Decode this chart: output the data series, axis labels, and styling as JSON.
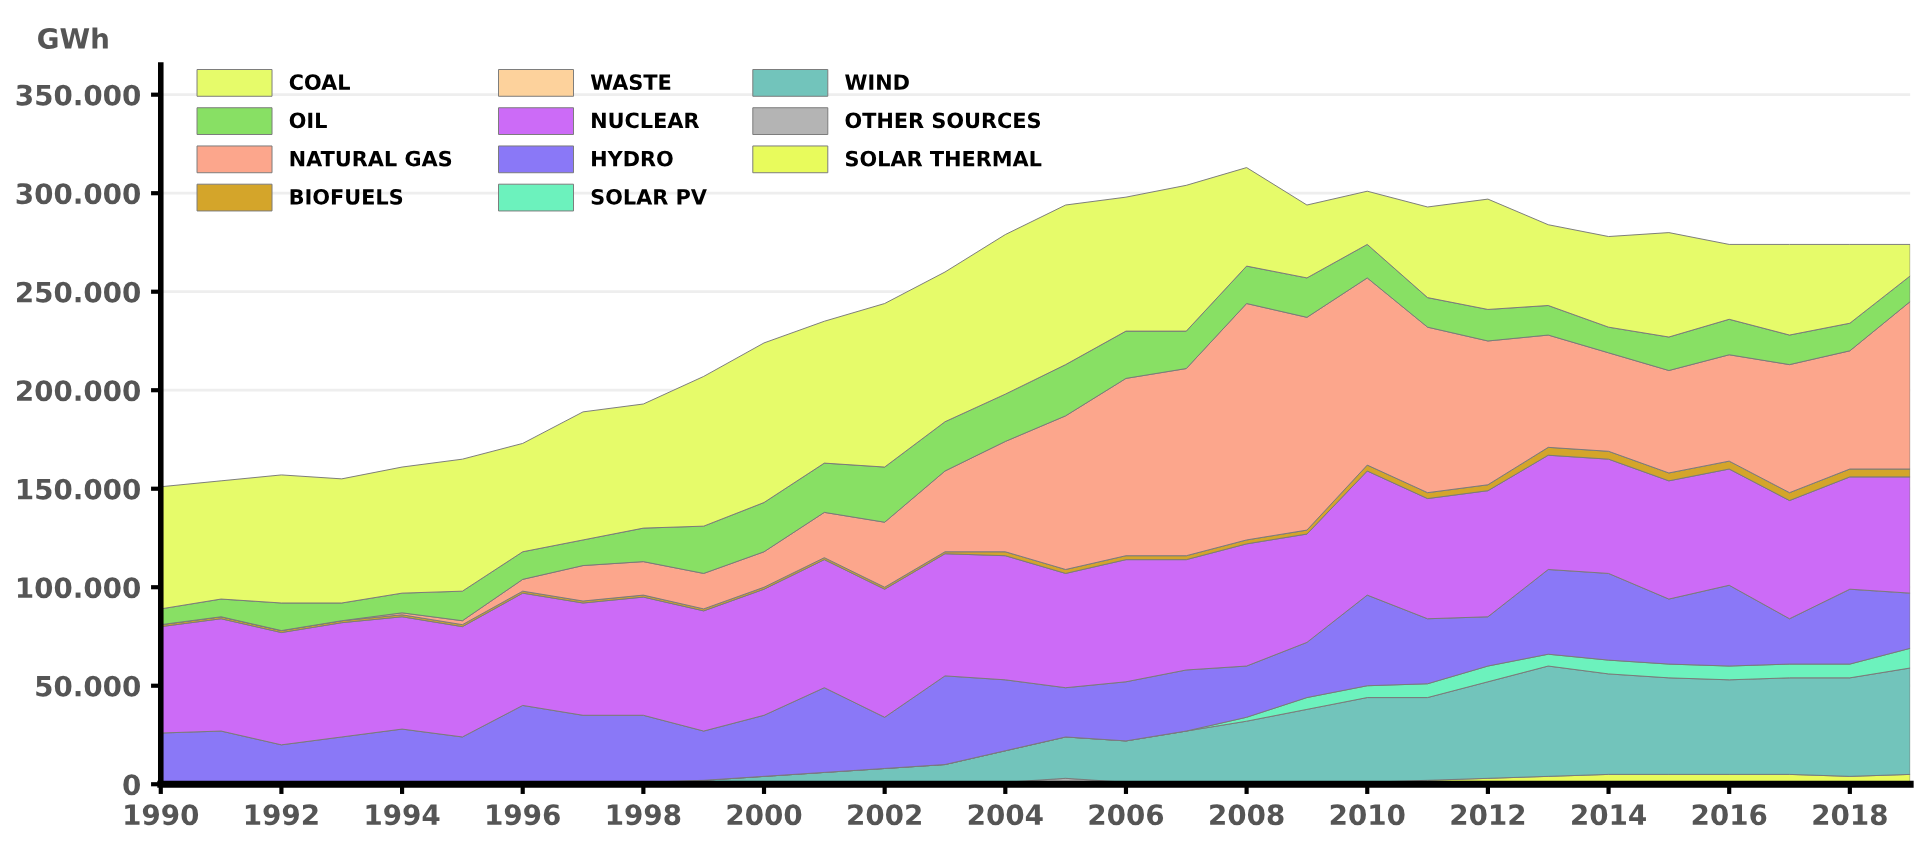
{
  "chart_data": {
    "type": "area",
    "stacked": true,
    "ylabel": "GWh",
    "x": [
      1990,
      1991,
      1992,
      1993,
      1994,
      1995,
      1996,
      1997,
      1998,
      1999,
      2000,
      2001,
      2002,
      2003,
      2004,
      2005,
      2006,
      2007,
      2008,
      2009,
      2010,
      2011,
      2012,
      2013,
      2014,
      2015,
      2016,
      2017,
      2018,
      2019
    ],
    "xlim": [
      1990,
      2019
    ],
    "xticks": [
      1990,
      1992,
      1994,
      1996,
      1998,
      2000,
      2002,
      2004,
      2006,
      2008,
      2010,
      2012,
      2014,
      2016,
      2018
    ],
    "ylim": [
      0,
      365000
    ],
    "yticks": [
      {
        "value": 0,
        "label": "0"
      },
      {
        "value": 50000,
        "label": "50.000"
      },
      {
        "value": 100000,
        "label": "100.000"
      },
      {
        "value": 150000,
        "label": "150.000"
      },
      {
        "value": 200000,
        "label": "200.000"
      },
      {
        "value": 250000,
        "label": "250.000"
      },
      {
        "value": 300000,
        "label": "300.000"
      },
      {
        "value": 350000,
        "label": "350.000"
      }
    ],
    "grid": "y",
    "legend": "top left",
    "series": [
      {
        "name": "SOLAR THERMAL",
        "color": "#e8fb5c",
        "values": [
          0,
          0,
          0,
          0,
          0,
          0,
          0,
          0,
          0,
          0,
          0,
          0,
          0,
          0,
          0,
          0,
          0,
          0,
          0,
          0,
          1000,
          2000,
          3000,
          4000,
          5000,
          5000,
          5000,
          5000,
          4000,
          5000
        ]
      },
      {
        "name": "OTHER SOURCES",
        "color": "#b4b4b4",
        "values": [
          null,
          null,
          null,
          null,
          null,
          null,
          null,
          null,
          null,
          null,
          null,
          null,
          null,
          0,
          1000,
          3000,
          1000,
          0,
          null,
          null,
          null,
          null,
          null,
          null,
          null,
          null,
          null,
          null,
          null,
          null
        ]
      },
      {
        "name": "WIND",
        "color": "#72c4bb",
        "values": [
          0,
          0,
          0,
          0,
          0,
          0,
          0,
          0,
          1000,
          2000,
          4000,
          6000,
          8000,
          10000,
          16000,
          21000,
          21000,
          27000,
          32000,
          38000,
          43000,
          42000,
          49000,
          56000,
          51000,
          49000,
          48000,
          49000,
          50000,
          54000
        ]
      },
      {
        "name": "SOLAR PV",
        "color": "#6cf2bd",
        "values": [
          0,
          0,
          0,
          0,
          0,
          0,
          0,
          0,
          0,
          0,
          0,
          0,
          0,
          0,
          0,
          0,
          0,
          0,
          2000,
          6000,
          6000,
          7000,
          8000,
          6000,
          7000,
          7000,
          7000,
          7000,
          7000,
          10000
        ]
      },
      {
        "name": "HYDRO",
        "color": "#8a78f7",
        "values": [
          26000,
          27000,
          20000,
          24000,
          28000,
          24000,
          40000,
          35000,
          34000,
          25000,
          31000,
          43000,
          26000,
          45000,
          36000,
          25000,
          30000,
          31000,
          26000,
          28000,
          46000,
          33000,
          25000,
          43000,
          44000,
          33000,
          41000,
          23000,
          38000,
          28000
        ]
      },
      {
        "name": "NUCLEAR",
        "color": "#cc6bf7",
        "values": [
          54000,
          57000,
          57000,
          58000,
          57000,
          56000,
          57000,
          57000,
          60000,
          61000,
          64000,
          65000,
          65000,
          62000,
          63000,
          58000,
          62000,
          56000,
          62000,
          55000,
          63000,
          61000,
          64000,
          58000,
          58000,
          60000,
          59000,
          60000,
          57000,
          59000
        ]
      },
      {
        "name": "WASTE",
        "color": "#fdd29c",
        "values": [
          null,
          null,
          null,
          null,
          null,
          null,
          null,
          null,
          null,
          null,
          null,
          null,
          null,
          null,
          null,
          null,
          null,
          null,
          null,
          null,
          null,
          null,
          null,
          null,
          null,
          null,
          null,
          null,
          null,
          null
        ]
      },
      {
        "name": "BIOFUELS",
        "color": "#d4a52a",
        "values": [
          1000,
          1000,
          1000,
          1000,
          1000,
          1000,
          1000,
          1000,
          1000,
          1000,
          1000,
          1000,
          1000,
          1000,
          2000,
          2000,
          2000,
          2000,
          2000,
          2000,
          3000,
          3000,
          3000,
          4000,
          4000,
          4000,
          4000,
          4000,
          4000,
          4000
        ]
      },
      {
        "name": "NATURAL GAS",
        "color": "#fca68c",
        "values": [
          0,
          0,
          0,
          0,
          1000,
          2000,
          6000,
          18000,
          17000,
          18000,
          18000,
          23000,
          33000,
          41000,
          56000,
          78000,
          90000,
          95000,
          120000,
          108000,
          95000,
          84000,
          73000,
          57000,
          50000,
          52000,
          54000,
          65000,
          60000,
          85000
        ]
      },
      {
        "name": "OIL",
        "color": "#88e064",
        "values": [
          8000,
          9000,
          14000,
          9000,
          10000,
          15000,
          14000,
          13000,
          17000,
          24000,
          25000,
          25000,
          28000,
          25000,
          24000,
          26000,
          24000,
          19000,
          19000,
          20000,
          17000,
          15000,
          16000,
          15000,
          13000,
          17000,
          18000,
          15000,
          14000,
          13000
        ]
      },
      {
        "name": "COAL",
        "color": "#e6fb6a",
        "values": [
          62000,
          60000,
          65000,
          63000,
          64000,
          67000,
          55000,
          65000,
          63000,
          76000,
          81000,
          72000,
          83000,
          76000,
          81000,
          81000,
          68000,
          74000,
          50000,
          37000,
          27000,
          46000,
          56000,
          41000,
          46000,
          53000,
          38000,
          46000,
          40000,
          16000
        ]
      }
    ]
  }
}
